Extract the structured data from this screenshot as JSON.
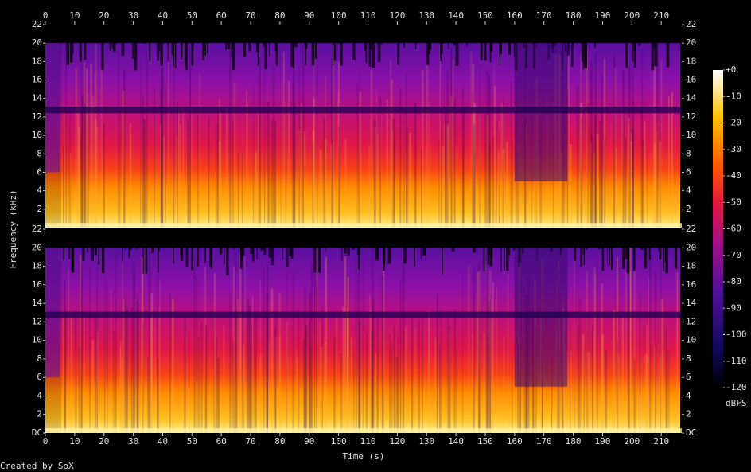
{
  "chart_data": {
    "type": "spectrogram",
    "xlabel": "Time (s)",
    "ylabel": "Frequency (kHz)",
    "xlim": [
      0,
      217
    ],
    "xticks": [
      0,
      10,
      20,
      30,
      40,
      50,
      60,
      70,
      80,
      90,
      100,
      110,
      120,
      130,
      140,
      150,
      160,
      170,
      180,
      190,
      200,
      210
    ],
    "channels": [
      {
        "ylim": [
          0,
          22
        ],
        "yticks": [
          2,
          4,
          6,
          8,
          10,
          12,
          14,
          16,
          18,
          20,
          22
        ]
      },
      {
        "ylim": [
          0,
          22
        ],
        "yticks": [
          {
            "value": 0,
            "label": "DC"
          },
          2,
          4,
          6,
          8,
          10,
          12,
          14,
          16,
          18,
          20,
          22
        ]
      }
    ],
    "colorbar": {
      "label": "dBFS",
      "lim": [
        -120,
        0
      ],
      "ticks": [
        {
          "value": 0,
          "label": "+0"
        },
        -10,
        -20,
        -30,
        -40,
        -50,
        -60,
        -70,
        -80,
        -90,
        -100,
        -110,
        -120
      ]
    },
    "footer": "Created by SoX"
  }
}
